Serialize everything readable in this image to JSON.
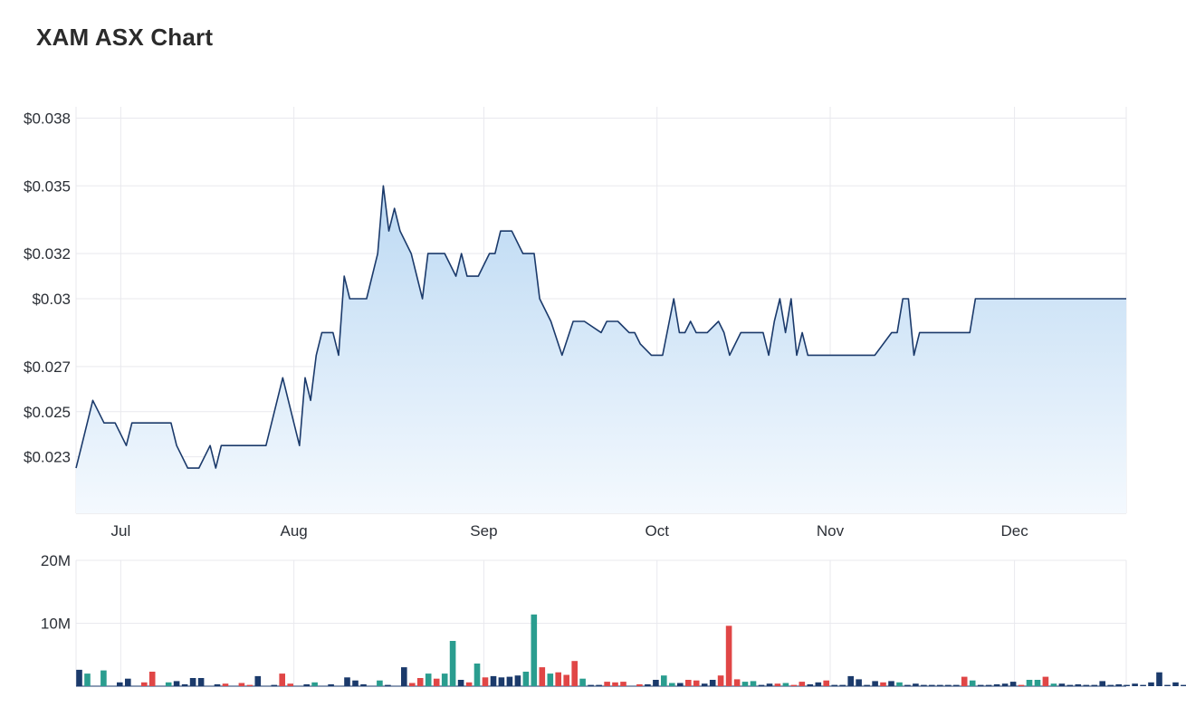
{
  "title": "XAM ASX Chart",
  "colors": {
    "line": "#1b3a6b",
    "area_top": "#bcd9f3",
    "area_bottom": "#f4f9fe",
    "volume_up": "#2a9d8f",
    "volume_down": "#e04646",
    "volume_neutral": "#1b3a6b",
    "grid": "#e9e9ee"
  },
  "chart_data": [
    {
      "type": "area",
      "title": "XAM ASX Chart",
      "x_ticks": [
        "Jul",
        "Aug",
        "Sep",
        "Oct",
        "Nov",
        "Dec"
      ],
      "y_ticks": [
        "$0.038",
        "$0.035",
        "$0.032",
        "$0.03",
        "$0.027",
        "$0.025",
        "$0.023"
      ],
      "ylim": [
        0.0205,
        0.0385
      ],
      "grid": true,
      "x_days": [
        0,
        1,
        3,
        5,
        7,
        9,
        10,
        11,
        13,
        15,
        17,
        18,
        20,
        22,
        24,
        25,
        26,
        27,
        29,
        31,
        33,
        34,
        35,
        37,
        39,
        40,
        41,
        42,
        43,
        44,
        46,
        47,
        48,
        49,
        50,
        52,
        54,
        55,
        56,
        57,
        58,
        60,
        62,
        63,
        64,
        66,
        68,
        69,
        70,
        72,
        74,
        75,
        76,
        78,
        80,
        82,
        83,
        85,
        87,
        89,
        91,
        94,
        95,
        97,
        99,
        100,
        101,
        103,
        105,
        107,
        108,
        109,
        110,
        111,
        113,
        115,
        116,
        117,
        119,
        121,
        123,
        124,
        125,
        126,
        127,
        128,
        129,
        130,
        131,
        132,
        133,
        135,
        137,
        141,
        142,
        143,
        146,
        147,
        148,
        149,
        150,
        151,
        152,
        153,
        155,
        157,
        159,
        160,
        161,
        162,
        164,
        168,
        173,
        175,
        177,
        179,
        180,
        181,
        182,
        184,
        186,
        188
      ],
      "values": [
        0.0225,
        0.0235,
        0.0255,
        0.0245,
        0.0245,
        0.0235,
        0.0245,
        0.0245,
        0.0245,
        0.0245,
        0.0245,
        0.0235,
        0.0225,
        0.0225,
        0.0235,
        0.0225,
        0.0235,
        0.0235,
        0.0235,
        0.0235,
        0.0235,
        0.0235,
        0.0245,
        0.0265,
        0.0245,
        0.0235,
        0.0265,
        0.0255,
        0.0275,
        0.0285,
        0.0285,
        0.0275,
        0.031,
        0.03,
        0.03,
        0.03,
        0.032,
        0.035,
        0.033,
        0.034,
        0.033,
        0.032,
        0.03,
        0.032,
        0.032,
        0.032,
        0.031,
        0.032,
        0.031,
        0.031,
        0.032,
        0.032,
        0.033,
        0.033,
        0.032,
        0.032,
        0.03,
        0.029,
        0.0275,
        0.029,
        0.029,
        0.0285,
        0.029,
        0.029,
        0.0285,
        0.0285,
        0.028,
        0.0275,
        0.0275,
        0.03,
        0.0285,
        0.0285,
        0.029,
        0.0285,
        0.0285,
        0.029,
        0.0285,
        0.0275,
        0.0285,
        0.0285,
        0.0285,
        0.0275,
        0.029,
        0.03,
        0.0285,
        0.03,
        0.0275,
        0.0285,
        0.0275,
        0.0275,
        0.0275,
        0.0275,
        0.0275,
        0.0275,
        0.0275,
        0.0275,
        0.0285,
        0.0285,
        0.03,
        0.03,
        0.0275,
        0.0285,
        0.0285,
        0.0285,
        0.0285,
        0.0285,
        0.0285,
        0.0285,
        0.03,
        0.03,
        0.03,
        0.03,
        0.03,
        0.03,
        0.03,
        0.03,
        0.03,
        0.03,
        0.03,
        0.03,
        0.03,
        0.03
      ]
    },
    {
      "type": "bar",
      "title": "",
      "y_ticks": [
        "20M",
        "10M"
      ],
      "ylim": [
        0,
        20000000
      ],
      "grid": true,
      "bars": [
        {
          "day": 0,
          "volume": 2600000,
          "dir": "neutral"
        },
        {
          "day": 1,
          "volume": 2000000,
          "dir": "up"
        },
        {
          "day": 3,
          "volume": 2500000,
          "dir": "up"
        },
        {
          "day": 5,
          "volume": 600000,
          "dir": "neutral"
        },
        {
          "day": 6,
          "volume": 1200000,
          "dir": "neutral"
        },
        {
          "day": 8,
          "volume": 600000,
          "dir": "down"
        },
        {
          "day": 9,
          "volume": 2300000,
          "dir": "down"
        },
        {
          "day": 11,
          "volume": 600000,
          "dir": "up"
        },
        {
          "day": 12,
          "volume": 800000,
          "dir": "neutral"
        },
        {
          "day": 13,
          "volume": 300000,
          "dir": "neutral"
        },
        {
          "day": 14,
          "volume": 1300000,
          "dir": "neutral"
        },
        {
          "day": 15,
          "volume": 1300000,
          "dir": "neutral"
        },
        {
          "day": 17,
          "volume": 300000,
          "dir": "neutral"
        },
        {
          "day": 18,
          "volume": 400000,
          "dir": "down"
        },
        {
          "day": 20,
          "volume": 500000,
          "dir": "down"
        },
        {
          "day": 21,
          "volume": 200000,
          "dir": "down"
        },
        {
          "day": 22,
          "volume": 1600000,
          "dir": "neutral"
        },
        {
          "day": 24,
          "volume": 200000,
          "dir": "neutral"
        },
        {
          "day": 25,
          "volume": 2000000,
          "dir": "down"
        },
        {
          "day": 26,
          "volume": 400000,
          "dir": "down"
        },
        {
          "day": 28,
          "volume": 300000,
          "dir": "neutral"
        },
        {
          "day": 29,
          "volume": 600000,
          "dir": "up"
        },
        {
          "day": 31,
          "volume": 300000,
          "dir": "neutral"
        },
        {
          "day": 33,
          "volume": 1400000,
          "dir": "neutral"
        },
        {
          "day": 34,
          "volume": 900000,
          "dir": "neutral"
        },
        {
          "day": 35,
          "volume": 300000,
          "dir": "neutral"
        },
        {
          "day": 37,
          "volume": 900000,
          "dir": "up"
        },
        {
          "day": 38,
          "volume": 200000,
          "dir": "neutral"
        },
        {
          "day": 40,
          "volume": 3000000,
          "dir": "neutral"
        },
        {
          "day": 41,
          "volume": 500000,
          "dir": "down"
        },
        {
          "day": 42,
          "volume": 1300000,
          "dir": "down"
        },
        {
          "day": 43,
          "volume": 2000000,
          "dir": "up"
        },
        {
          "day": 44,
          "volume": 1200000,
          "dir": "down"
        },
        {
          "day": 45,
          "volume": 2000000,
          "dir": "up"
        },
        {
          "day": 46,
          "volume": 7200000,
          "dir": "up"
        },
        {
          "day": 47,
          "volume": 1000000,
          "dir": "neutral"
        },
        {
          "day": 48,
          "volume": 600000,
          "dir": "down"
        },
        {
          "day": 49,
          "volume": 3600000,
          "dir": "up"
        },
        {
          "day": 50,
          "volume": 1400000,
          "dir": "down"
        },
        {
          "day": 51,
          "volume": 1600000,
          "dir": "neutral"
        },
        {
          "day": 52,
          "volume": 1400000,
          "dir": "neutral"
        },
        {
          "day": 53,
          "volume": 1500000,
          "dir": "neutral"
        },
        {
          "day": 54,
          "volume": 1700000,
          "dir": "neutral"
        },
        {
          "day": 55,
          "volume": 2300000,
          "dir": "up"
        },
        {
          "day": 56,
          "volume": 11400000,
          "dir": "up"
        },
        {
          "day": 57,
          "volume": 3000000,
          "dir": "down"
        },
        {
          "day": 58,
          "volume": 2000000,
          "dir": "up"
        },
        {
          "day": 59,
          "volume": 2200000,
          "dir": "down"
        },
        {
          "day": 60,
          "volume": 1800000,
          "dir": "down"
        },
        {
          "day": 61,
          "volume": 4000000,
          "dir": "down"
        },
        {
          "day": 62,
          "volume": 1200000,
          "dir": "up"
        },
        {
          "day": 63,
          "volume": 200000,
          "dir": "neutral"
        },
        {
          "day": 64,
          "volume": 200000,
          "dir": "neutral"
        },
        {
          "day": 65,
          "volume": 700000,
          "dir": "down"
        },
        {
          "day": 66,
          "volume": 600000,
          "dir": "down"
        },
        {
          "day": 67,
          "volume": 700000,
          "dir": "down"
        },
        {
          "day": 69,
          "volume": 300000,
          "dir": "down"
        },
        {
          "day": 70,
          "volume": 300000,
          "dir": "neutral"
        },
        {
          "day": 71,
          "volume": 1000000,
          "dir": "neutral"
        },
        {
          "day": 72,
          "volume": 1700000,
          "dir": "up"
        },
        {
          "day": 73,
          "volume": 500000,
          "dir": "up"
        },
        {
          "day": 74,
          "volume": 500000,
          "dir": "neutral"
        },
        {
          "day": 75,
          "volume": 1000000,
          "dir": "down"
        },
        {
          "day": 76,
          "volume": 900000,
          "dir": "down"
        },
        {
          "day": 77,
          "volume": 400000,
          "dir": "neutral"
        },
        {
          "day": 78,
          "volume": 1000000,
          "dir": "neutral"
        },
        {
          "day": 79,
          "volume": 1700000,
          "dir": "down"
        },
        {
          "day": 80,
          "volume": 9600000,
          "dir": "down"
        },
        {
          "day": 81,
          "volume": 1100000,
          "dir": "down"
        },
        {
          "day": 82,
          "volume": 700000,
          "dir": "up"
        },
        {
          "day": 83,
          "volume": 800000,
          "dir": "up"
        },
        {
          "day": 84,
          "volume": 200000,
          "dir": "neutral"
        },
        {
          "day": 85,
          "volume": 400000,
          "dir": "neutral"
        },
        {
          "day": 86,
          "volume": 400000,
          "dir": "down"
        },
        {
          "day": 87,
          "volume": 500000,
          "dir": "up"
        },
        {
          "day": 88,
          "volume": 200000,
          "dir": "down"
        },
        {
          "day": 89,
          "volume": 700000,
          "dir": "down"
        },
        {
          "day": 90,
          "volume": 300000,
          "dir": "neutral"
        },
        {
          "day": 91,
          "volume": 600000,
          "dir": "neutral"
        },
        {
          "day": 92,
          "volume": 900000,
          "dir": "down"
        },
        {
          "day": 93,
          "volume": 200000,
          "dir": "neutral"
        },
        {
          "day": 94,
          "volume": 200000,
          "dir": "neutral"
        },
        {
          "day": 95,
          "volume": 1600000,
          "dir": "neutral"
        },
        {
          "day": 96,
          "volume": 1100000,
          "dir": "neutral"
        },
        {
          "day": 97,
          "volume": 200000,
          "dir": "neutral"
        },
        {
          "day": 98,
          "volume": 800000,
          "dir": "neutral"
        },
        {
          "day": 99,
          "volume": 600000,
          "dir": "down"
        },
        {
          "day": 100,
          "volume": 800000,
          "dir": "neutral"
        },
        {
          "day": 101,
          "volume": 600000,
          "dir": "up"
        },
        {
          "day": 102,
          "volume": 200000,
          "dir": "neutral"
        },
        {
          "day": 103,
          "volume": 400000,
          "dir": "neutral"
        },
        {
          "day": 104,
          "volume": 200000,
          "dir": "neutral"
        },
        {
          "day": 105,
          "volume": 200000,
          "dir": "neutral"
        },
        {
          "day": 106,
          "volume": 200000,
          "dir": "neutral"
        },
        {
          "day": 107,
          "volume": 200000,
          "dir": "neutral"
        },
        {
          "day": 108,
          "volume": 200000,
          "dir": "neutral"
        },
        {
          "day": 109,
          "volume": 1500000,
          "dir": "down"
        },
        {
          "day": 110,
          "volume": 900000,
          "dir": "up"
        },
        {
          "day": 111,
          "volume": 200000,
          "dir": "neutral"
        },
        {
          "day": 112,
          "volume": 200000,
          "dir": "neutral"
        },
        {
          "day": 113,
          "volume": 300000,
          "dir": "neutral"
        },
        {
          "day": 114,
          "volume": 400000,
          "dir": "neutral"
        },
        {
          "day": 115,
          "volume": 700000,
          "dir": "neutral"
        },
        {
          "day": 116,
          "volume": 200000,
          "dir": "down"
        },
        {
          "day": 117,
          "volume": 1000000,
          "dir": "up"
        },
        {
          "day": 118,
          "volume": 1000000,
          "dir": "up"
        },
        {
          "day": 119,
          "volume": 1500000,
          "dir": "down"
        },
        {
          "day": 120,
          "volume": 400000,
          "dir": "up"
        },
        {
          "day": 121,
          "volume": 400000,
          "dir": "neutral"
        },
        {
          "day": 122,
          "volume": 200000,
          "dir": "neutral"
        },
        {
          "day": 123,
          "volume": 300000,
          "dir": "neutral"
        },
        {
          "day": 124,
          "volume": 200000,
          "dir": "neutral"
        },
        {
          "day": 125,
          "volume": 200000,
          "dir": "neutral"
        },
        {
          "day": 126,
          "volume": 800000,
          "dir": "neutral"
        },
        {
          "day": 127,
          "volume": 200000,
          "dir": "neutral"
        },
        {
          "day": 128,
          "volume": 300000,
          "dir": "neutral"
        },
        {
          "day": 129,
          "volume": 200000,
          "dir": "neutral"
        },
        {
          "day": 130,
          "volume": 400000,
          "dir": "neutral"
        },
        {
          "day": 131,
          "volume": 200000,
          "dir": "neutral"
        },
        {
          "day": 132,
          "volume": 600000,
          "dir": "neutral"
        },
        {
          "day": 133,
          "volume": 2200000,
          "dir": "neutral"
        },
        {
          "day": 134,
          "volume": 200000,
          "dir": "neutral"
        },
        {
          "day": 135,
          "volume": 600000,
          "dir": "neutral"
        },
        {
          "day": 136,
          "volume": 200000,
          "dir": "neutral"
        },
        {
          "day": 137,
          "volume": 1200000,
          "dir": "neutral"
        },
        {
          "day": 138,
          "volume": 2000000,
          "dir": "up"
        },
        {
          "day": 139,
          "volume": 1300000,
          "dir": "neutral"
        },
        {
          "day": 140,
          "volume": 700000,
          "dir": "down"
        },
        {
          "day": 141,
          "volume": 200000,
          "dir": "neutral"
        },
        {
          "day": 142,
          "volume": 400000,
          "dir": "neutral"
        },
        {
          "day": 143,
          "volume": 400000,
          "dir": "neutral"
        },
        {
          "day": 144,
          "volume": 2200000,
          "dir": "neutral"
        },
        {
          "day": 145,
          "volume": 1200000,
          "dir": "neutral"
        },
        {
          "day": 146,
          "volume": 400000,
          "dir": "neutral"
        },
        {
          "day": 147,
          "volume": 1800000,
          "dir": "neutral"
        },
        {
          "day": 148,
          "volume": 200000,
          "dir": "neutral"
        }
      ]
    }
  ]
}
